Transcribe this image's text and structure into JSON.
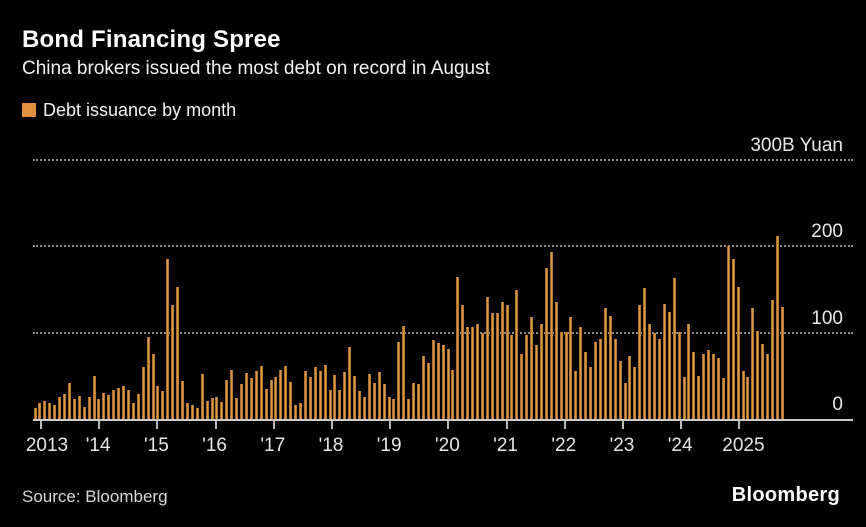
{
  "header": {
    "title": "Bond Financing Spree",
    "subtitle": "China brokers issued the most debt on record in August"
  },
  "legend": {
    "label": "Debt issuance by month",
    "swatch_color": "#e2923e"
  },
  "footer": {
    "source": "Source: Bloomberg",
    "brand": "Bloomberg"
  },
  "colors": {
    "background": "#000000",
    "bar_edge": "#8a5a24",
    "bar_mid": "#d28c3c",
    "bar_highlight": "#e9a14a",
    "gridline": "#8e8e8c",
    "axis_line": "#c9c9c7",
    "title_text": "#ffffff",
    "axis_text": "#eae9e7"
  },
  "chart_data": {
    "type": "bar",
    "title": "Bond Financing Spree",
    "subtitle": "China brokers issued the most debt on record in August",
    "series_name": "Debt issuance by month",
    "unit": "B Yuan",
    "start_month": "2013-01",
    "end_month": "2025-09",
    "ylim": [
      0,
      300
    ],
    "grid": "horizontal-dotted",
    "legend_position": "top-left",
    "y_axis_side": "right",
    "y_ticks": [
      {
        "value": 0,
        "label": "0"
      },
      {
        "value": 100,
        "label": "100"
      },
      {
        "value": 200,
        "label": "200"
      },
      {
        "value": 300,
        "label": "300B Yuan"
      }
    ],
    "x_tick_labels": [
      "2013",
      "'14",
      "'15",
      "'16",
      "'17",
      "'18",
      "'19",
      "'20",
      "'21",
      "'22",
      "'23",
      "'24",
      "2025"
    ],
    "values": [
      13,
      19,
      21,
      19,
      16,
      26,
      29,
      42,
      23,
      27,
      14,
      26,
      50,
      23,
      30,
      28,
      34,
      36,
      38,
      34,
      19,
      29,
      60,
      95,
      75,
      38,
      32,
      185,
      132,
      153,
      44,
      19,
      16,
      13,
      52,
      21,
      24,
      26,
      20,
      45,
      57,
      24,
      41,
      53,
      47,
      56,
      61,
      35,
      45,
      48,
      57,
      61,
      43,
      16,
      19,
      56,
      49,
      60,
      56,
      62,
      34,
      51,
      34,
      54,
      83,
      50,
      32,
      26,
      52,
      42,
      54,
      40,
      26,
      23,
      89,
      108,
      23,
      42,
      40,
      73,
      65,
      91,
      88,
      86,
      81,
      57,
      164,
      132,
      106,
      106,
      110,
      99,
      141,
      122,
      122,
      135,
      132,
      97,
      149,
      75,
      97,
      118,
      85,
      110,
      174,
      193,
      135,
      100,
      100,
      118,
      56,
      106,
      77,
      60,
      89,
      93,
      128,
      119,
      93,
      67,
      42,
      73,
      60,
      132,
      152,
      110,
      99,
      93,
      133,
      124,
      163,
      100,
      48,
      110,
      77,
      50,
      75,
      80,
      75,
      70,
      47,
      200,
      185,
      153,
      55,
      48,
      128,
      102,
      87,
      75,
      137,
      211,
      130
    ]
  }
}
